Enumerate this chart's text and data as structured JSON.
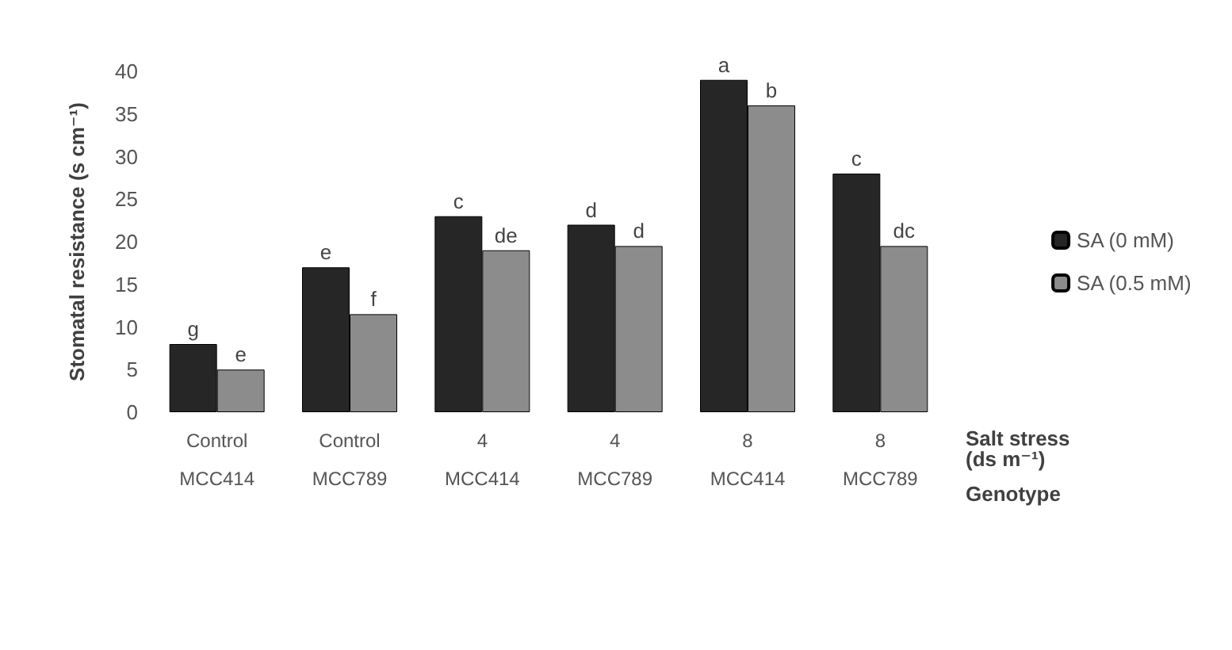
{
  "chart_data": {
    "type": "bar",
    "categories": [
      "Control\nMCC414",
      "Control\nMCC789",
      "4\nMCC414",
      "4\nMCC789",
      "8\nMCC414",
      "8\nMCC789"
    ],
    "series": [
      {
        "name": "SA (0 mM)",
        "color": "#262626",
        "values": [
          8,
          17,
          23,
          22,
          39,
          28
        ],
        "value_labels": [
          "g",
          "e",
          "c",
          "d",
          "a",
          "c"
        ]
      },
      {
        "name": "SA (0.5 mM)",
        "color": "#8c8c8c",
        "values": [
          5,
          11.5,
          19,
          19.5,
          36,
          19.5
        ],
        "value_labels": [
          "e",
          "f",
          "de",
          "d",
          "b",
          "dc"
        ]
      }
    ],
    "ylabel": "Stomatal resistance (s cm⁻¹)",
    "xlabel": "Salt stress\n(ds m⁻¹)",
    "annotations": [
      "Genotype"
    ],
    "ylim": [
      0,
      40
    ],
    "yticks": [
      0,
      5,
      10,
      15,
      20,
      25,
      30,
      35,
      40
    ],
    "grid": false,
    "legend": "right"
  }
}
